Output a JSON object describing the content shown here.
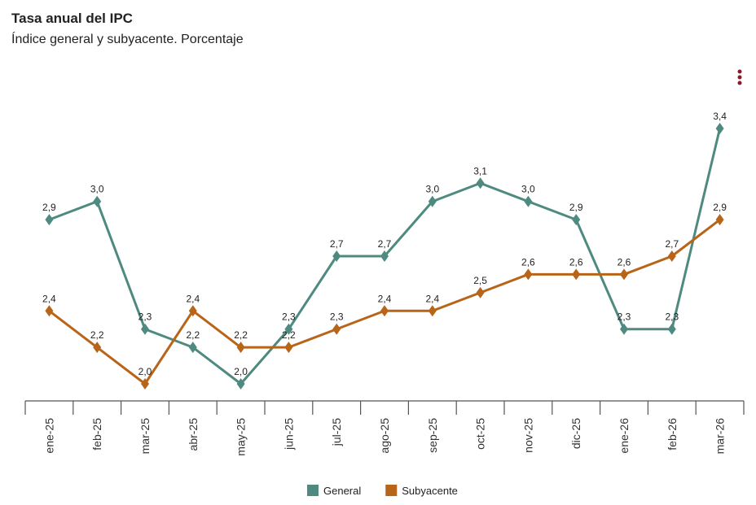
{
  "chart_data": {
    "type": "line",
    "title": "Tasa anual del IPC",
    "subtitle": "Índice general y subyacente. Porcentaje",
    "categories": [
      "ene-25",
      "feb-25",
      "mar-25",
      "abr-25",
      "may-25",
      "jun-25",
      "jul-25",
      "ago-25",
      "sep-25",
      "oct-25",
      "nov-25",
      "dic-25",
      "ene-26",
      "feb-26",
      "mar-26"
    ],
    "series": [
      {
        "name": "General",
        "color": "#4e8a80",
        "values": [
          2.9,
          3.0,
          2.3,
          2.2,
          2.0,
          2.3,
          2.7,
          2.7,
          3.0,
          3.1,
          3.0,
          2.9,
          2.3,
          2.3,
          3.4
        ],
        "value_labels": [
          "2,9",
          "3,0",
          "2,3",
          "2,2",
          "2,0",
          "2,3",
          "2,7",
          "2,7",
          "3,0",
          "3,1",
          "3,0",
          "2,9",
          "2,3",
          "2,3",
          "3,4"
        ]
      },
      {
        "name": "Subyacente",
        "color": "#b8651a",
        "values": [
          2.4,
          2.2,
          2.0,
          2.4,
          2.2,
          2.2,
          2.3,
          2.4,
          2.4,
          2.5,
          2.6,
          2.6,
          2.6,
          2.7,
          2.9
        ],
        "value_labels": [
          "2,4",
          "2,2",
          "2,0",
          "2,4",
          "2,2",
          "2,2",
          "2,3",
          "2,4",
          "2,4",
          "2,5",
          "2,6",
          "2,6",
          "2,6",
          "2,7",
          "2,9"
        ]
      }
    ]
  }
}
